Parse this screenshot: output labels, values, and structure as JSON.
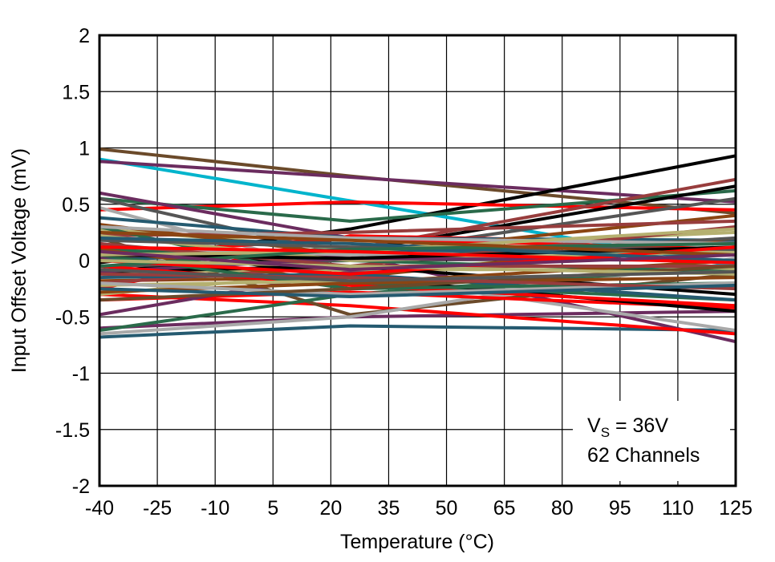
{
  "chart_data": {
    "type": "line",
    "xlabel": "Temperature (°C)",
    "ylabel": "Input Offset Voltage (mV)",
    "xlim": [
      -40,
      125
    ],
    "ylim": [
      -2,
      2
    ],
    "x_ticks": [
      "-40",
      "-25",
      "-10",
      "5",
      "20",
      "35",
      "50",
      "65",
      "80",
      "95",
      "110",
      "125"
    ],
    "y_ticks": [
      "2",
      "1.5",
      "1",
      "0.5",
      "0",
      "-0.5",
      "-1",
      "-1.5",
      "-2"
    ],
    "grid": true,
    "annotation": {
      "line1_main": "V",
      "line1_sub": "S",
      "line1_rest": " = 36V",
      "line2": "62 Channels"
    },
    "x": [
      -40,
      25,
      125
    ],
    "series": [
      {
        "color": "#6b4a2a",
        "values": [
          0.99,
          0.75,
          0.42
        ]
      },
      {
        "color": "#00b4cc",
        "values": [
          0.9,
          0.53,
          -0.05
        ]
      },
      {
        "color": "#6b2c5f",
        "values": [
          0.88,
          0.74,
          0.52
        ]
      },
      {
        "color": "#000000",
        "values": [
          -0.02,
          0.28,
          0.93
        ]
      },
      {
        "color": "#ff0000",
        "values": [
          0.45,
          0.52,
          0.45
        ]
      },
      {
        "color": "#2a6a4a",
        "values": [
          0.55,
          0.35,
          0.62
        ]
      },
      {
        "color": "#6b2c5f",
        "values": [
          0.6,
          0.2,
          -0.02
        ]
      },
      {
        "color": "#983d3d",
        "values": [
          0.05,
          0.1,
          0.72
        ]
      },
      {
        "color": "#000000",
        "values": [
          -0.1,
          0.08,
          0.66
        ]
      },
      {
        "color": "#555555",
        "values": [
          0.55,
          0.05,
          0.55
        ]
      },
      {
        "color": "#6b2c5f",
        "values": [
          0.02,
          0.05,
          -0.72
        ]
      },
      {
        "color": "#255a70",
        "values": [
          -0.68,
          -0.58,
          -0.62
        ]
      },
      {
        "color": "#6b2c5f",
        "values": [
          -0.6,
          -0.5,
          -0.45
        ]
      },
      {
        "color": "#a9a9a9",
        "values": [
          0.47,
          -0.12,
          -0.62
        ]
      },
      {
        "color": "#ff0000",
        "values": [
          -0.3,
          -0.4,
          -0.65
        ]
      },
      {
        "color": "#6b4a2a",
        "values": [
          0.2,
          -0.48,
          -0.12
        ]
      },
      {
        "color": "#a9a9a9",
        "values": [
          -0.65,
          -0.5,
          0.02
        ]
      },
      {
        "color": "#2a6a4a",
        "values": [
          -0.62,
          -0.3,
          -0.05
        ]
      },
      {
        "color": "#ff0000",
        "values": [
          -0.25,
          0.22,
          0.15
        ]
      },
      {
        "color": "#255a70",
        "values": [
          0.38,
          0.2,
          0.18
        ]
      },
      {
        "color": "#b5b070",
        "values": [
          0.28,
          0.1,
          0.25
        ]
      },
      {
        "color": "#8b4513",
        "values": [
          0.32,
          0.05,
          0.4
        ]
      },
      {
        "color": "#983d3d",
        "values": [
          0.22,
          0.25,
          0.35
        ]
      },
      {
        "color": "#2a6a4a",
        "values": [
          0.3,
          -0.2,
          -0.35
        ]
      },
      {
        "color": "#ff0000",
        "values": [
          -0.35,
          -0.28,
          -0.42
        ]
      },
      {
        "color": "#000000",
        "values": [
          0.15,
          -0.15,
          -0.45
        ]
      },
      {
        "color": "#b5b070",
        "values": [
          -0.3,
          -0.1,
          0.12
        ]
      },
      {
        "color": "#6b2c5f",
        "values": [
          -0.48,
          -0.1,
          0.1
        ]
      },
      {
        "color": "#a9a9a9",
        "values": [
          0.12,
          0.05,
          0.1
        ]
      },
      {
        "color": "#b5b070",
        "values": [
          -0.1,
          -0.08,
          -0.08
        ]
      },
      {
        "color": "#8b4513",
        "values": [
          -0.18,
          -0.15,
          0.2
        ]
      },
      {
        "color": "#255a70",
        "values": [
          0.0,
          0.1,
          0.05
        ]
      },
      {
        "color": "#ff0000",
        "values": [
          0.05,
          0.2,
          0.1
        ]
      },
      {
        "color": "#555555",
        "values": [
          -0.05,
          0.0,
          0.2
        ]
      },
      {
        "color": "#983d3d",
        "values": [
          -0.2,
          -0.05,
          0.3
        ]
      },
      {
        "color": "#2a6a4a",
        "values": [
          0.1,
          0.0,
          -0.1
        ]
      },
      {
        "color": "#000000",
        "values": [
          -0.1,
          -0.05,
          -0.3
        ]
      },
      {
        "color": "#b5b070",
        "values": [
          0.22,
          0.0,
          0.08
        ]
      },
      {
        "color": "#8b4513",
        "values": [
          0.1,
          -0.2,
          0.0
        ]
      },
      {
        "color": "#a9a9a9",
        "values": [
          0.3,
          0.2,
          0.15
        ]
      },
      {
        "color": "#255a70",
        "values": [
          -0.15,
          -0.12,
          -0.35
        ]
      },
      {
        "color": "#6b2c5f",
        "values": [
          -0.1,
          0.02,
          0.0
        ]
      },
      {
        "color": "#ff0000",
        "values": [
          -0.05,
          -0.22,
          -0.4
        ]
      },
      {
        "color": "#983d3d",
        "values": [
          0.15,
          -0.05,
          -0.05
        ]
      },
      {
        "color": "#2a6a4a",
        "values": [
          0.05,
          -0.25,
          -0.2
        ]
      },
      {
        "color": "#b5b070",
        "values": [
          -0.22,
          -0.18,
          -0.1
        ]
      },
      {
        "color": "#8b4513",
        "values": [
          -0.28,
          -0.2,
          -0.15
        ]
      },
      {
        "color": "#555555",
        "values": [
          0.18,
          0.12,
          0.1
        ]
      },
      {
        "color": "#000000",
        "values": [
          0.05,
          0.02,
          0.12
        ]
      },
      {
        "color": "#ff0000",
        "values": [
          0.0,
          -0.12,
          0.12
        ]
      },
      {
        "color": "#255a70",
        "values": [
          0.2,
          0.15,
          0.0
        ]
      },
      {
        "color": "#a9a9a9",
        "values": [
          -0.2,
          -0.3,
          -0.2
        ]
      },
      {
        "color": "#6b4a2a",
        "values": [
          -0.35,
          -0.25,
          -0.05
        ]
      },
      {
        "color": "#b5b070",
        "values": [
          0.05,
          0.08,
          0.28
        ]
      },
      {
        "color": "#983d3d",
        "values": [
          -0.12,
          -0.15,
          -0.25
        ]
      },
      {
        "color": "#2a6a4a",
        "values": [
          -0.05,
          0.1,
          0.15
        ]
      },
      {
        "color": "#8b4513",
        "values": [
          0.25,
          0.18,
          0.05
        ]
      },
      {
        "color": "#255a70",
        "values": [
          -0.25,
          -0.32,
          -0.22
        ]
      },
      {
        "color": "#b5b070",
        "values": [
          0.0,
          -0.05,
          -0.12
        ]
      },
      {
        "color": "#ff0000",
        "values": [
          0.12,
          0.08,
          -0.02
        ]
      },
      {
        "color": "#555555",
        "values": [
          -0.08,
          -0.18,
          -0.1
        ]
      },
      {
        "color": "#6b2c5f",
        "values": [
          0.08,
          -0.08,
          0.05
        ]
      }
    ]
  }
}
